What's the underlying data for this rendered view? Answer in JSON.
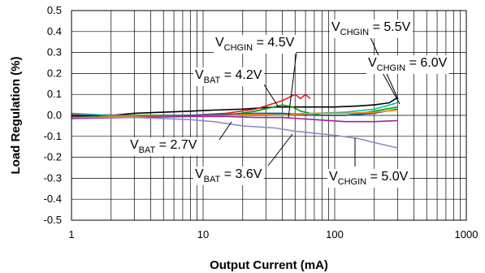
{
  "chart_data": {
    "type": "line",
    "xscale": "log",
    "xlim": [
      1,
      1000
    ],
    "ylim": [
      -0.5,
      0.5
    ],
    "xlabel": "Output Current (mA)",
    "ylabel": "Load Regulation (%)",
    "x_ticks": [
      1,
      10,
      100,
      1000
    ],
    "x_tick_labels": [
      "1",
      "10",
      "100",
      "1000"
    ],
    "y_ticks": [
      -0.5,
      -0.4,
      -0.3,
      -0.2,
      -0.1,
      0.0,
      0.1,
      0.2,
      0.3,
      0.4,
      0.5
    ],
    "y_tick_labels": [
      "-0.5",
      "-0.4",
      "-0.3",
      "-0.2",
      "-0.1",
      "0.0",
      "0.1",
      "0.2",
      "0.3",
      "0.4",
      "0.5"
    ],
    "grid": true,
    "series": [
      {
        "color": "#000000",
        "points": [
          [
            1,
            -0.005
          ],
          [
            2,
            0.0
          ],
          [
            3,
            0.01
          ],
          [
            5,
            0.015
          ],
          [
            8,
            0.02
          ],
          [
            12,
            0.025
          ],
          [
            20,
            0.03
          ],
          [
            35,
            0.04
          ],
          [
            60,
            0.04
          ],
          [
            100,
            0.04
          ],
          [
            150,
            0.045
          ],
          [
            200,
            0.05
          ],
          [
            260,
            0.06
          ],
          [
            300,
            0.085
          ]
        ]
      },
      {
        "color": "#e02020",
        "points": [
          [
            1,
            0.005
          ],
          [
            3,
            0.0
          ],
          [
            8,
            0.0
          ],
          [
            15,
            0.01
          ],
          [
            25,
            0.03
          ],
          [
            40,
            0.07
          ],
          [
            50,
            0.1
          ],
          [
            55,
            0.08
          ],
          [
            60,
            0.1
          ],
          [
            65,
            0.08
          ]
        ]
      },
      {
        "color": "#00a000",
        "points": [
          [
            1,
            -0.01
          ],
          [
            3,
            0.0
          ],
          [
            8,
            0.0
          ],
          [
            15,
            0.0
          ],
          [
            25,
            0.02
          ],
          [
            40,
            0.05
          ],
          [
            48,
            0.04
          ],
          [
            55,
            0.02
          ],
          [
            65,
            0.01
          ],
          [
            80,
            0.0
          ],
          [
            120,
            0.0
          ],
          [
            200,
            0.02
          ],
          [
            300,
            0.04
          ]
        ]
      },
      {
        "color": "#00c0c0",
        "points": [
          [
            1,
            0.01
          ],
          [
            2,
            0.0
          ],
          [
            4,
            -0.005
          ],
          [
            10,
            0.0
          ],
          [
            20,
            0.005
          ],
          [
            40,
            0.005
          ],
          [
            70,
            0.01
          ],
          [
            120,
            0.015
          ],
          [
            200,
            0.03
          ],
          [
            300,
            0.06
          ]
        ]
      },
      {
        "color": "#1e4fa8",
        "points": [
          [
            1,
            -0.01
          ],
          [
            3,
            -0.005
          ],
          [
            8,
            0.0
          ],
          [
            15,
            0.005
          ],
          [
            25,
            0.01
          ],
          [
            40,
            0.01
          ],
          [
            70,
            0.0
          ],
          [
            120,
            0.0
          ],
          [
            200,
            0.01
          ],
          [
            300,
            0.03
          ]
        ]
      },
      {
        "color": "#ff8c00",
        "points": [
          [
            1,
            -0.01
          ],
          [
            3,
            -0.005
          ],
          [
            8,
            -0.005
          ],
          [
            15,
            0.0
          ],
          [
            25,
            0.005
          ],
          [
            40,
            0.0
          ],
          [
            70,
            0.01
          ],
          [
            120,
            0.01
          ],
          [
            200,
            0.015
          ],
          [
            300,
            0.025
          ]
        ]
      },
      {
        "color": "#a020a0",
        "points": [
          [
            1,
            -0.015
          ],
          [
            3,
            -0.01
          ],
          [
            8,
            -0.005
          ],
          [
            15,
            -0.005
          ],
          [
            25,
            -0.01
          ],
          [
            40,
            -0.01
          ],
          [
            70,
            -0.02
          ],
          [
            120,
            -0.03
          ],
          [
            200,
            -0.03
          ],
          [
            300,
            -0.025
          ]
        ]
      },
      {
        "color": "#8c8cc8",
        "points": [
          [
            1,
            -0.01
          ],
          [
            3,
            -0.01
          ],
          [
            8,
            -0.02
          ],
          [
            12,
            -0.03
          ],
          [
            20,
            -0.05
          ],
          [
            35,
            -0.06
          ],
          [
            50,
            -0.075
          ],
          [
            70,
            -0.085
          ],
          [
            100,
            -0.095
          ],
          [
            150,
            -0.11
          ],
          [
            200,
            -0.13
          ],
          [
            300,
            -0.155
          ]
        ]
      }
    ],
    "annotations": [
      {
        "base": "V",
        "sub": "CHGIN",
        "rest": " = 4.5V"
      },
      {
        "base": "V",
        "sub": "CHGIN",
        "rest": " = 5.5V"
      },
      {
        "base": "V",
        "sub": "CHGIN",
        "rest": " = 6.0V"
      },
      {
        "base": "V",
        "sub": "BAT",
        "rest": " = 4.2V"
      },
      {
        "base": "V",
        "sub": "BAT",
        "rest": " = 2.7V"
      },
      {
        "base": "V",
        "sub": "BAT",
        "rest": " = 3.6V"
      },
      {
        "base": "V",
        "sub": "CHGIN",
        "rest": " = 5.0V"
      }
    ]
  }
}
